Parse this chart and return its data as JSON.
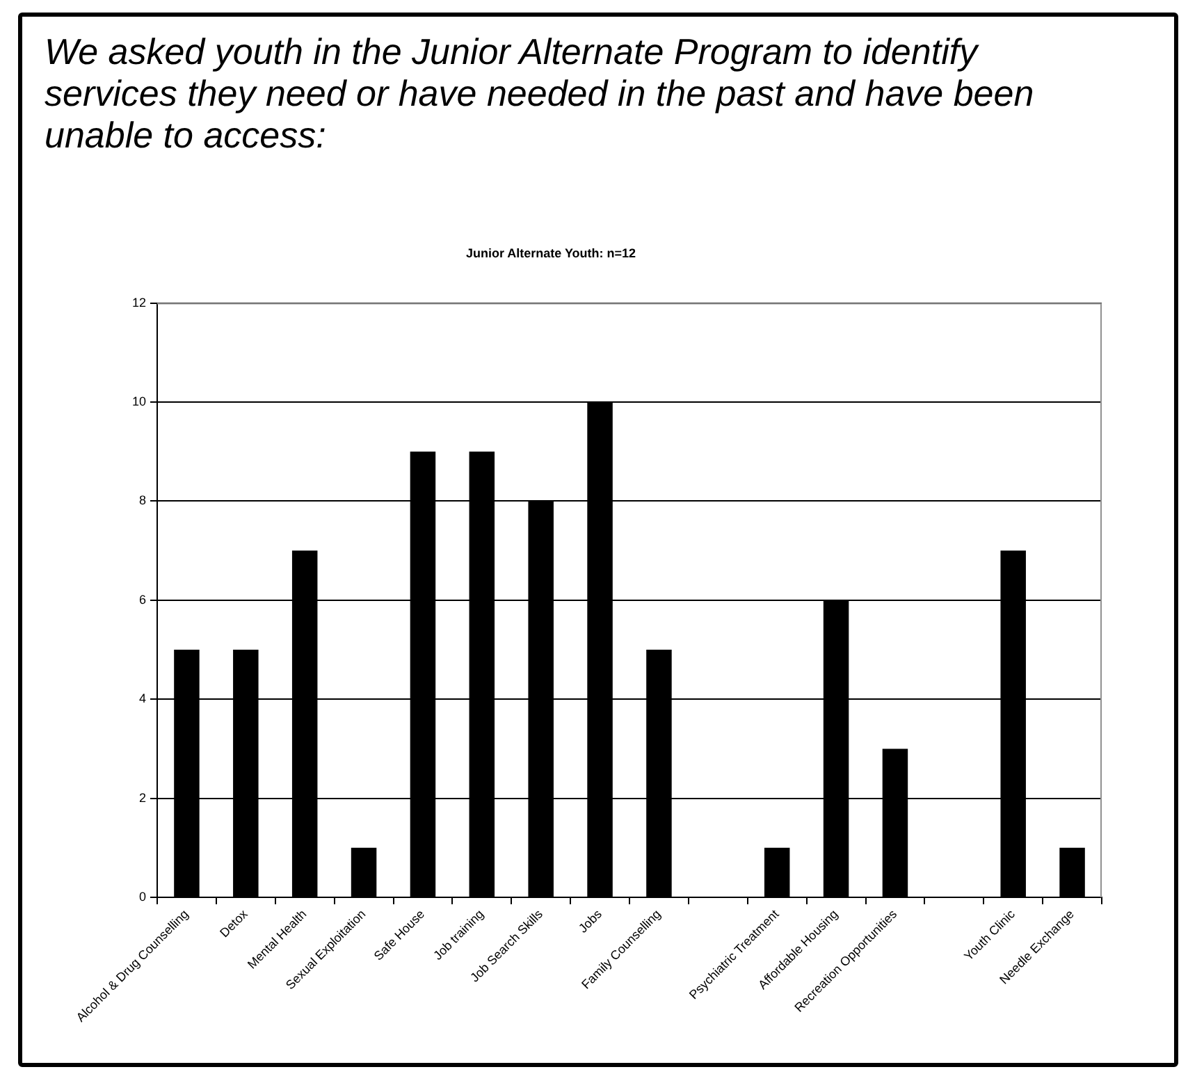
{
  "chart_data": {
    "type": "bar",
    "title": "Junior Alternate Youth: n=12",
    "annotations": [
      "We asked youth in the Junior Alternate Program to identify services they need or have needed in the past and have been unable to access:"
    ],
    "categories": [
      "Alcohol & Drug Counselling",
      "Detox",
      "Mental Health",
      "Sexual Exploitation",
      "Safe House",
      "Job training",
      "Job Search Skills",
      "Jobs",
      "Family Counselling",
      null,
      "Psychiatric Treatment",
      "Affordable Housing",
      "Recreation Opportunities",
      null,
      "Youth Clinic",
      "Needle Exchange"
    ],
    "values": [
      5,
      5,
      7,
      1,
      9,
      9,
      8,
      10,
      5,
      null,
      1,
      6,
      3,
      null,
      7,
      1
    ],
    "color": "#000000",
    "ylim": [
      0,
      12
    ],
    "yticks": [
      0,
      2,
      4,
      6,
      8,
      10,
      12
    ],
    "grid": "y"
  }
}
